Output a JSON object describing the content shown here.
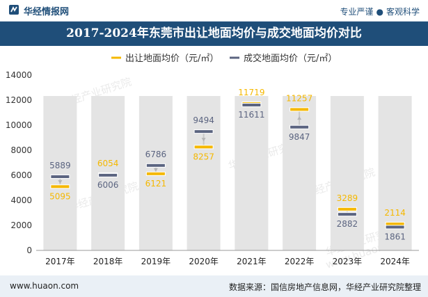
{
  "header": {
    "brand": "华经情报网",
    "tagline_left": "专业严谨",
    "tagline_right": "客观科学",
    "logo_icon": "huajing-logo-icon"
  },
  "footer": {
    "website": "www.huaon.com",
    "source": "数据来源：国信房地产信息网，华经产业研究院整理"
  },
  "watermarks": [
    "华经产业研究院",
    "华经产业研究院",
    "华经产业研究院",
    "华经产业研究院",
    "华经产业研究院",
    "www.huaon.com"
  ],
  "colors": {
    "title_bg": "#1f4e79",
    "series_supply": "#f5b800",
    "series_deal": "#5b6480",
    "column_bg": "#e4e4e4",
    "connector": "#c9c9c9"
  },
  "chart_data": {
    "type": "bar",
    "title": "2017-2024年东莞市出让地面均价与成交地面均价对比",
    "categories": [
      "2017年",
      "2018年",
      "2019年",
      "2020年",
      "2021年",
      "2022年",
      "2023年",
      "2024年"
    ],
    "series": [
      {
        "name": "出让地面均价（元/㎡）",
        "values": [
          5095,
          6054,
          6121,
          8257,
          11719,
          11257,
          3289,
          2114
        ]
      },
      {
        "name": "成交地面均价（元/㎡）",
        "values": [
          5889,
          6006,
          6786,
          9494,
          11611,
          9847,
          2882,
          1861
        ]
      }
    ],
    "ylim": [
      0,
      14000
    ],
    "yticks": [
      0,
      2000,
      4000,
      6000,
      8000,
      10000,
      12000,
      14000
    ],
    "legend": "top"
  }
}
